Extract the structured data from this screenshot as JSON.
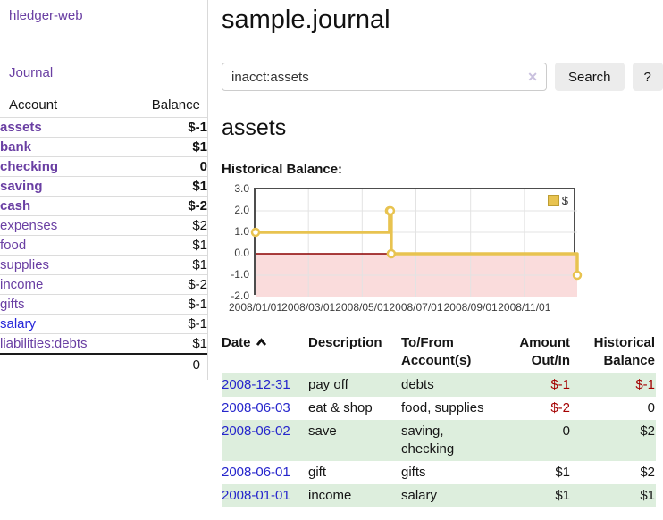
{
  "colors": {
    "purple_link": "#6a3fa3",
    "blue_link": "#2626d9",
    "negative_red": "#a40000",
    "negative_muted": "#c5817f",
    "row_green": "#ddeedd",
    "series_gold": "#e8c350",
    "chart_negative_fill": "#fadcdc",
    "zero_line": "#8b0000"
  },
  "sidebar": {
    "brand": "hledger-web",
    "nav_journal": "Journal",
    "col_account": "Account",
    "col_balance": "Balance",
    "accounts": [
      {
        "name": "assets",
        "balance": "$-1"
      },
      {
        "name": "bank",
        "balance": "$1"
      },
      {
        "name": "checking",
        "balance": "0"
      },
      {
        "name": "saving",
        "balance": "$1"
      },
      {
        "name": "cash",
        "balance": "$-2"
      },
      {
        "name": "expenses",
        "balance": "$2"
      },
      {
        "name": "food",
        "balance": "$1"
      },
      {
        "name": "supplies",
        "balance": "$1"
      },
      {
        "name": "income",
        "balance": "$-2"
      },
      {
        "name": "gifts",
        "balance": "$-1"
      },
      {
        "name": "salary",
        "balance": "$-1"
      },
      {
        "name": "liabilities:debts",
        "balance": "$1"
      }
    ],
    "total": "0"
  },
  "header": {
    "title": "sample.journal"
  },
  "search": {
    "value": "inacct:assets",
    "clear_glyph": "✕",
    "search_label": "Search",
    "help_label": "?"
  },
  "register": {
    "heading": "assets",
    "chart_title": "Historical Balance:",
    "table": {
      "col_date": "Date",
      "col_description": "Description",
      "col_tofrom": "To/From Account(s)",
      "col_amount": "Amount Out/In",
      "col_balance": "Historical Balance",
      "rows": [
        {
          "date": "2008-12-31",
          "description": "pay off",
          "tofrom": "debts",
          "amount": "$-1",
          "balance": "$-1"
        },
        {
          "date": "2008-06-03",
          "description": "eat & shop",
          "tofrom": "food, supplies",
          "amount": "$-2",
          "balance": "0"
        },
        {
          "date": "2008-06-02",
          "description": "save",
          "tofrom": "saving, checking",
          "amount": "0",
          "balance": "$2"
        },
        {
          "date": "2008-06-01",
          "description": "gift",
          "tofrom": "gifts",
          "amount": "$1",
          "balance": "$2"
        },
        {
          "date": "2008-01-01",
          "description": "income",
          "tofrom": "salary",
          "amount": "$1",
          "balance": "$1"
        }
      ]
    }
  },
  "chart_data": {
    "type": "line",
    "step": true,
    "title": "Historical Balance",
    "series": [
      {
        "name": "$",
        "color": "#e8c350",
        "points": [
          [
            "2008-01-01",
            1
          ],
          [
            "2008-06-01",
            2
          ],
          [
            "2008-06-02",
            2
          ],
          [
            "2008-06-03",
            0
          ],
          [
            "2008-12-31",
            -1
          ]
        ]
      }
    ],
    "xlim": [
      "2008-01-01",
      "2008-12-31"
    ],
    "ylim": [
      -2,
      3
    ],
    "y_ticks": [
      "3.0",
      "2.0",
      "1.0",
      "0.0",
      "-1.0",
      "-2.0"
    ],
    "y_tick_values": [
      3,
      2,
      1,
      0,
      -1,
      -2
    ],
    "x_ticks": [
      {
        "label": "2008/01/01",
        "date": "2008-01-01"
      },
      {
        "label": "2008/03/01",
        "date": "2008-03-01"
      },
      {
        "label": "2008/05/01",
        "date": "2008-05-01"
      },
      {
        "label": "2008/07/01",
        "date": "2008-07-01"
      },
      {
        "label": "2008/09/01",
        "date": "2008-09-01"
      },
      {
        "label": "2008/11/01",
        "date": "2008-11-01"
      }
    ],
    "grid": true,
    "legend_position": "top-right",
    "legend_label": "$",
    "negative_region_fill": "#fadcdc",
    "zero_line_color": "#8b0000"
  }
}
